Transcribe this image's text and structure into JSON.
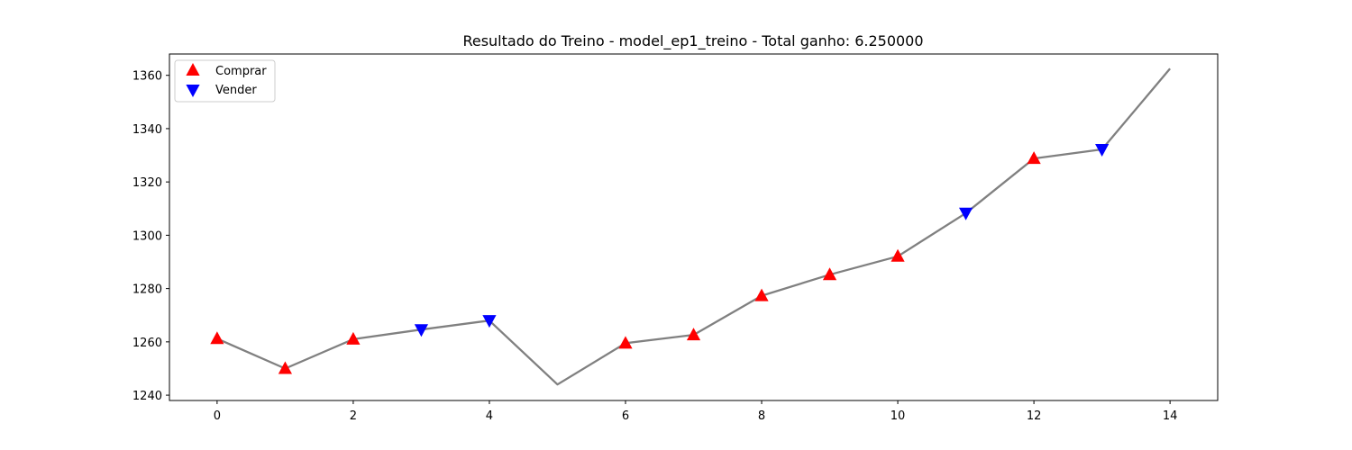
{
  "chart_data": {
    "type": "line",
    "title": "Resultado do Treino - model_ep1_treino - Total ganho: 6.250000",
    "xlabel": "",
    "ylabel": "",
    "xlim": [
      -0.7,
      14.7
    ],
    "ylim": [
      1238,
      1368
    ],
    "x_ticks": [
      0,
      2,
      4,
      6,
      8,
      10,
      12,
      14
    ],
    "y_ticks": [
      1240,
      1260,
      1280,
      1300,
      1320,
      1340,
      1360
    ],
    "x": [
      0,
      1,
      2,
      3,
      4,
      5,
      6,
      7,
      8,
      9,
      10,
      11,
      12,
      13,
      14
    ],
    "series": [
      {
        "values": [
          1261.2,
          1250.0,
          1261.0,
          1264.6,
          1268.0,
          1244.0,
          1259.5,
          1262.6,
          1277.3,
          1285.2,
          1292.1,
          1308.3,
          1328.8,
          1332.2,
          1362.5
        ],
        "color": "#808080"
      }
    ],
    "markers": {
      "buy": {
        "label": "Comprar",
        "x": [
          0,
          1,
          2,
          6,
          7,
          8,
          9,
          10,
          12
        ],
        "color": "#ff0000",
        "symbol": "triangle-up"
      },
      "sell": {
        "label": "Vender",
        "x": [
          3,
          4,
          11,
          13
        ],
        "color": "#0000ff",
        "symbol": "triangle-down"
      }
    },
    "legend_position": "top-left",
    "grid": false
  }
}
